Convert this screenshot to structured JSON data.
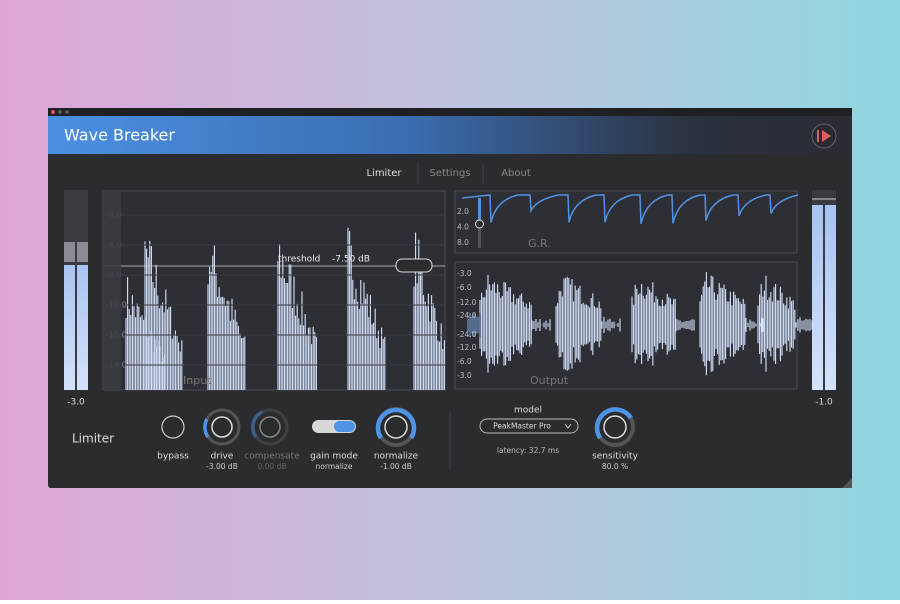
{
  "window": {
    "title": "Wave Breaker"
  },
  "tabs": [
    "Limiter",
    "Settings",
    "About"
  ],
  "meters": {
    "left": "-3.0",
    "right": "-1.0"
  },
  "input_display": {
    "scale": [
      "-3.0",
      "-6.0",
      "-9.0",
      "-12.0",
      "-15.0",
      "-18.0"
    ],
    "threshold_label": "threshold",
    "threshold_value": "-7.50 dB",
    "label": "Input"
  },
  "gr_display": {
    "scale": [
      "2.0",
      "4.0",
      "8.0"
    ],
    "label": "G.R."
  },
  "output_display": {
    "scale": [
      "-3.0",
      "-6.0",
      "-12.0",
      "-24.0",
      "-24.0",
      "-12.0",
      "-6.0",
      "-3.0"
    ],
    "label": "Output"
  },
  "controls": {
    "section": "Limiter",
    "bypass": {
      "label": "bypass"
    },
    "drive": {
      "label": "drive",
      "value": "-3.00 dB"
    },
    "compensate": {
      "label": "compensate",
      "value": "0.00 dB"
    },
    "gain_mode": {
      "label": "gain mode",
      "value": "normalize"
    },
    "normalize": {
      "label": "normalize",
      "value": "-1.00 dB"
    },
    "model": {
      "label": "model",
      "selected": "PeakMaster Pro",
      "latency": "latency: 32.7 ms"
    },
    "sensitivity": {
      "label": "sensitivity",
      "value": "80.0 %"
    }
  }
}
